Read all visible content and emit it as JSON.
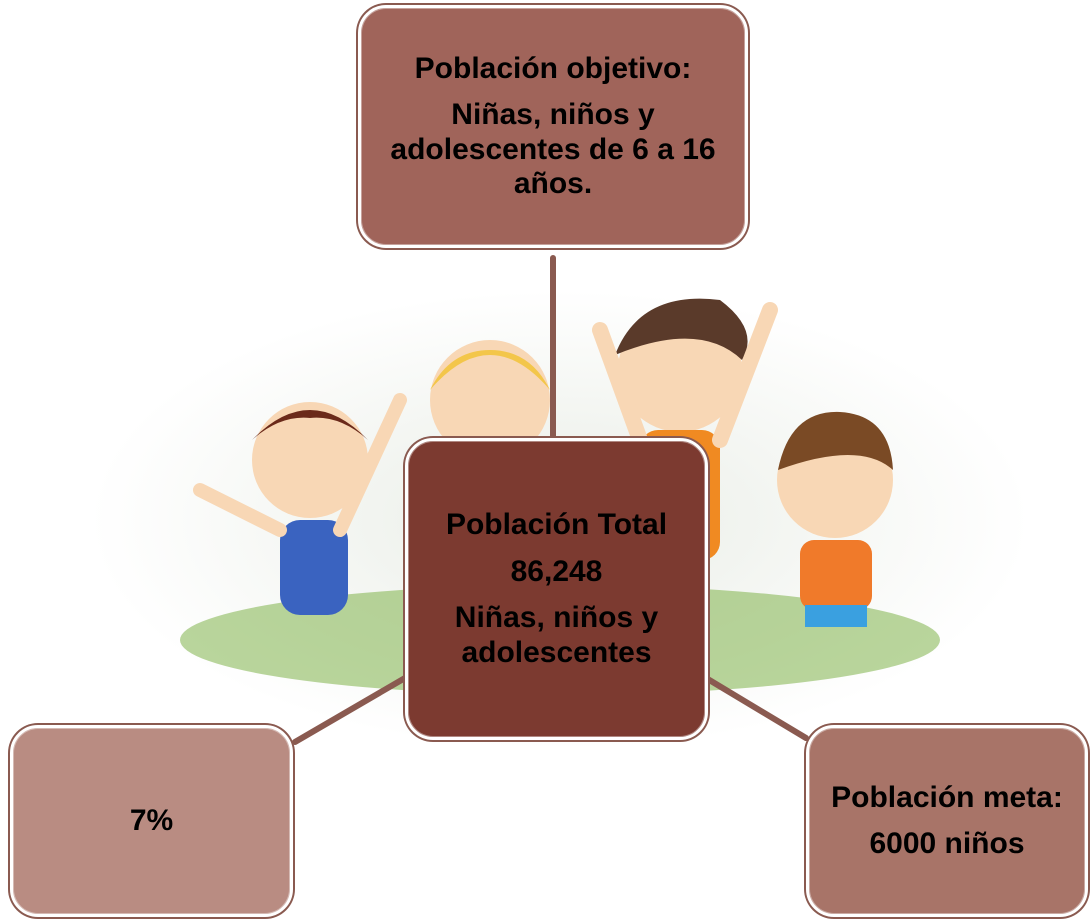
{
  "nodes": [
    {
      "lines": [
        "Población objetivo:",
        "Niñas, niños y adolescentes de 6 a 16 años."
      ]
    },
    {
      "lines": [
        "Población Total",
        "86,248",
        "Niñas, niños y adolescentes"
      ]
    },
    {
      "lines": [
        "7%"
      ]
    },
    {
      "lines": [
        "Población meta:",
        "6000 niños"
      ]
    }
  ]
}
